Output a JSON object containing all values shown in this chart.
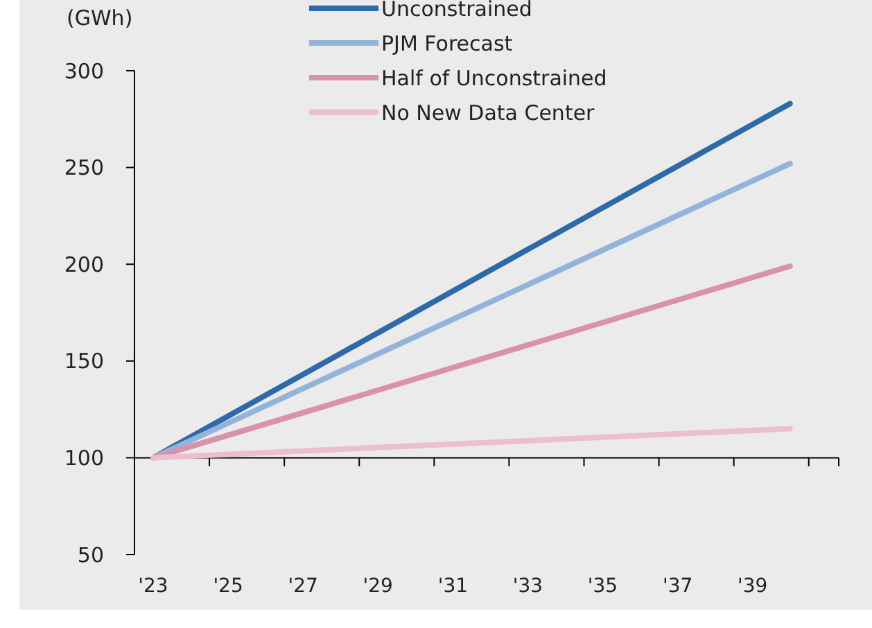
{
  "chart_data": {
    "type": "line",
    "ylabel": "(GWh)",
    "x": [
      2023,
      2040
    ],
    "xlim": [
      2022.5,
      2041.3
    ],
    "xticks": [
      {
        "value": 2023,
        "label": "'23"
      },
      {
        "value": 2025,
        "label": "'25"
      },
      {
        "value": 2027,
        "label": "'27"
      },
      {
        "value": 2029,
        "label": "'29"
      },
      {
        "value": 2031,
        "label": "'31"
      },
      {
        "value": 2033,
        "label": "'33"
      },
      {
        "value": 2035,
        "label": "'35"
      },
      {
        "value": 2037,
        "label": "'37"
      },
      {
        "value": 2039,
        "label": "'39"
      }
    ],
    "ylim": [
      50,
      300
    ],
    "yticks": [
      50,
      100,
      150,
      200,
      250,
      300
    ],
    "series": [
      {
        "name": "Unconstrained",
        "color": "#2e6aa8",
        "values": [
          100,
          283
        ]
      },
      {
        "name": "PJM Forecast",
        "color": "#94b3da",
        "values": [
          100,
          252
        ]
      },
      {
        "name": "Half of Unconstrained",
        "color": "#d993a9",
        "values": [
          100,
          199
        ]
      },
      {
        "name": "No New Data Center",
        "color": "#ebbfcd",
        "values": [
          100,
          115
        ]
      }
    ],
    "ref_lines": [
      {
        "axis": "y",
        "value": 100,
        "color": "#000000"
      }
    ],
    "legend": "top",
    "grid": false,
    "marker": "none",
    "line_style": "solid"
  }
}
